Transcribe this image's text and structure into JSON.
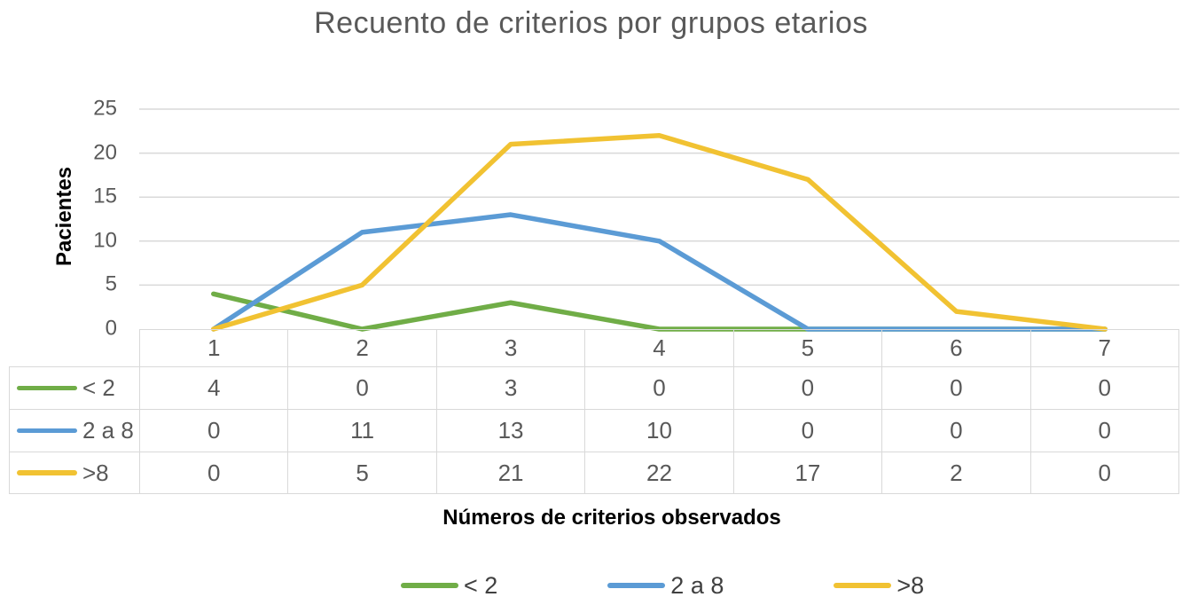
{
  "chart_data": {
    "type": "line",
    "title": "Recuento de criterios por grupos etarios",
    "xlabel": "Números de criterios observados",
    "ylabel": "Pacientes",
    "categories": [
      "1",
      "2",
      "3",
      "4",
      "5",
      "6",
      "7"
    ],
    "series": [
      {
        "name": "< 2",
        "color": "#70AD47",
        "values": [
          4,
          0,
          3,
          0,
          0,
          0,
          0
        ]
      },
      {
        "name": "2 a 8",
        "color": "#5B9BD5",
        "values": [
          0,
          11,
          13,
          10,
          0,
          0,
          0
        ]
      },
      {
        "name": ">8",
        "color": "#F1C232",
        "values": [
          0,
          5,
          21,
          22,
          17,
          2,
          0
        ]
      }
    ],
    "ylim": [
      0,
      25
    ],
    "yticks": [
      0,
      5,
      10,
      15,
      20,
      25
    ],
    "grid": true,
    "gridline_color": "#D9D9D9",
    "table_border_color": "#D9D9D9",
    "tick_text_color": "#595959",
    "title_color": "#595959",
    "axis_title_color": "#000000",
    "legend_position": "bottom",
    "data_table_shown": true
  }
}
